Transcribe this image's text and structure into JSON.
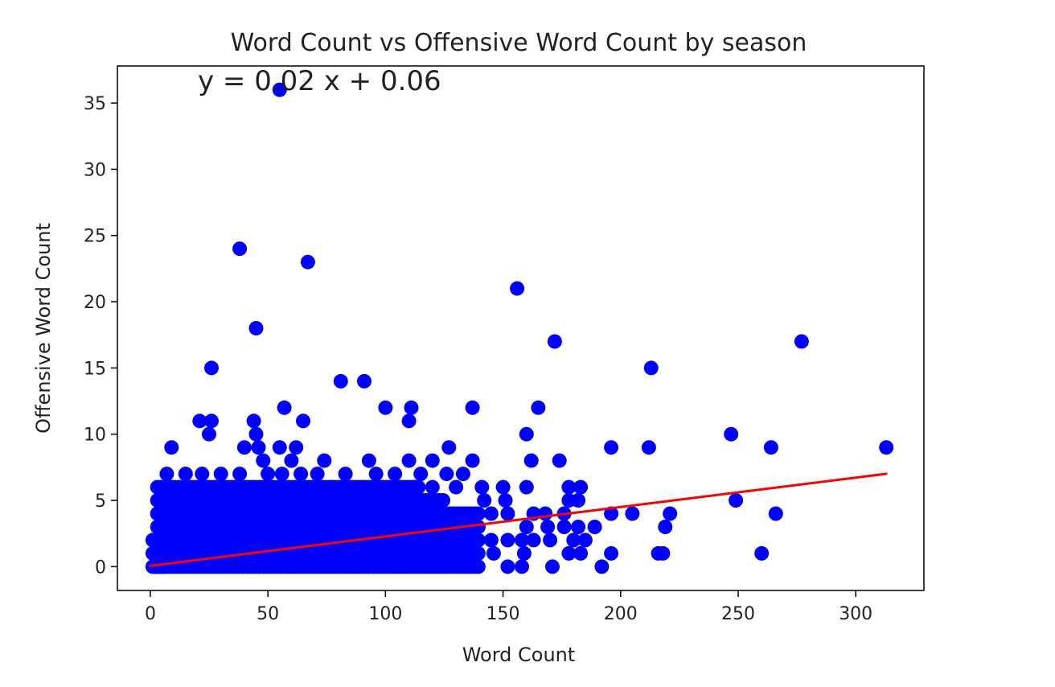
{
  "chart_data": {
    "type": "scatter",
    "title": "Word Count vs Offensive Word Count by season",
    "xlabel": "Word Count",
    "ylabel": "Offensive Word Count",
    "xlim": [
      -14,
      329
    ],
    "ylim": [
      -1.8,
      37.8
    ],
    "xticks": [
      0,
      50,
      100,
      150,
      200,
      250,
      300
    ],
    "yticks": [
      0,
      5,
      10,
      15,
      20,
      25,
      30,
      35
    ],
    "grid": false,
    "legend": "none",
    "marker_color": "#0000ff",
    "fit_line_color": "#ff0000",
    "annotation": "y = 0.02 x + 0.06",
    "fit_line": {
      "slope": 0.0222,
      "intercept": 0.06,
      "x_range": [
        0,
        313
      ]
    },
    "dense_region": {
      "description_level": "points",
      "x_range": [
        0,
        140
      ],
      "y_values": [
        0,
        1,
        2,
        3,
        4,
        5,
        6
      ],
      "x_step": 1.5
    },
    "points": [
      [
        55,
        36
      ],
      [
        38,
        24
      ],
      [
        67,
        23
      ],
      [
        156,
        21
      ],
      [
        45,
        18
      ],
      [
        172,
        17
      ],
      [
        277,
        17
      ],
      [
        26,
        15
      ],
      [
        213,
        15
      ],
      [
        81,
        14
      ],
      [
        91,
        14
      ],
      [
        57,
        12
      ],
      [
        100,
        12
      ],
      [
        111,
        12
      ],
      [
        137,
        12
      ],
      [
        165,
        12
      ],
      [
        21,
        11
      ],
      [
        26,
        11
      ],
      [
        44,
        11
      ],
      [
        65,
        11
      ],
      [
        110,
        11
      ],
      [
        25,
        10
      ],
      [
        45,
        10
      ],
      [
        160,
        10
      ],
      [
        247,
        10
      ],
      [
        9,
        9
      ],
      [
        40,
        9
      ],
      [
        46,
        9
      ],
      [
        55,
        9
      ],
      [
        62,
        9
      ],
      [
        127,
        9
      ],
      [
        196,
        9
      ],
      [
        212,
        9
      ],
      [
        264,
        9
      ],
      [
        313,
        9
      ],
      [
        48,
        8
      ],
      [
        60,
        8
      ],
      [
        74,
        8
      ],
      [
        93,
        8
      ],
      [
        110,
        8
      ],
      [
        120,
        8
      ],
      [
        137,
        8
      ],
      [
        162,
        8
      ],
      [
        174,
        8
      ],
      [
        7,
        7
      ],
      [
        15,
        7
      ],
      [
        22,
        7
      ],
      [
        30,
        7
      ],
      [
        38,
        7
      ],
      [
        50,
        7
      ],
      [
        56,
        7
      ],
      [
        64,
        7
      ],
      [
        71,
        7
      ],
      [
        83,
        7
      ],
      [
        96,
        7
      ],
      [
        104,
        7
      ],
      [
        115,
        7
      ],
      [
        126,
        7
      ],
      [
        133,
        7
      ],
      [
        178,
        6
      ],
      [
        183,
        6
      ],
      [
        141,
        6
      ],
      [
        150,
        6
      ],
      [
        160,
        6
      ],
      [
        112,
        6
      ],
      [
        120,
        6
      ],
      [
        130,
        6
      ],
      [
        142,
        5
      ],
      [
        151,
        5
      ],
      [
        178,
        5
      ],
      [
        182,
        5
      ],
      [
        249,
        5
      ],
      [
        145,
        4
      ],
      [
        152,
        4
      ],
      [
        163,
        4
      ],
      [
        168,
        4
      ],
      [
        176,
        4
      ],
      [
        196,
        4
      ],
      [
        205,
        4
      ],
      [
        221,
        4
      ],
      [
        266,
        4
      ],
      [
        160,
        3
      ],
      [
        169,
        3
      ],
      [
        176,
        3
      ],
      [
        182,
        3
      ],
      [
        189,
        3
      ],
      [
        219,
        3
      ],
      [
        145,
        2
      ],
      [
        152,
        2
      ],
      [
        158,
        2
      ],
      [
        163,
        2
      ],
      [
        170,
        2
      ],
      [
        180,
        2
      ],
      [
        185,
        2
      ],
      [
        146,
        1
      ],
      [
        159,
        1
      ],
      [
        178,
        1
      ],
      [
        183,
        1
      ],
      [
        196,
        1
      ],
      [
        216,
        1
      ],
      [
        218,
        1
      ],
      [
        260,
        1
      ],
      [
        152,
        0
      ],
      [
        158,
        0
      ],
      [
        171,
        0
      ],
      [
        192,
        0
      ]
    ]
  }
}
